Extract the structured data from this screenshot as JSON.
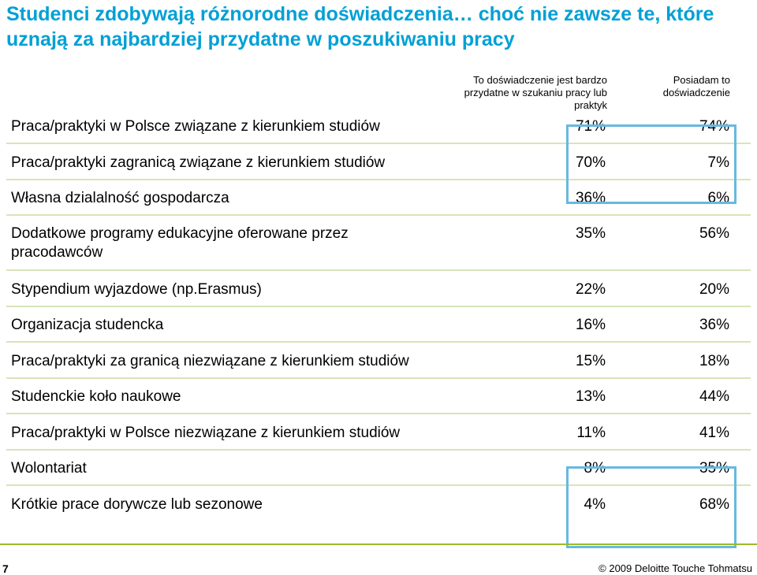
{
  "title": "Studenci zdobywają różnorodne doświadczenia… choć nie zawsze te, które uznają za najbardziej przydatne w poszukiwaniu pracy",
  "columns": {
    "useful": "To doświadczenie jest bardzo przydatne w szukaniu pracy lub praktyk",
    "have": "Posiadam to doświadczenie"
  },
  "rows": [
    {
      "label": "Praca/praktyki w Polsce związane z kierunkiem studiów",
      "useful": "71%",
      "have": "74%"
    },
    {
      "label": "Praca/praktyki zagranicą związane z kierunkiem studiów",
      "useful": "70%",
      "have": "7%"
    },
    {
      "label": "Własna dzialalność gospodarcza",
      "useful": "36%",
      "have": "6%"
    },
    {
      "label": "Dodatkowe programy edukacyjne oferowane przez pracodawców",
      "useful": "35%",
      "have": "56%"
    },
    {
      "label": "Stypendium wyjazdowe (np.Erasmus)",
      "useful": "22%",
      "have": "20%"
    },
    {
      "label": "Organizacja studencka",
      "useful": "16%",
      "have": "36%"
    },
    {
      "label": "Praca/praktyki za granicą niezwiązane z kierunkiem studiów",
      "useful": "15%",
      "have": "18%"
    },
    {
      "label": "Studenckie koło naukowe",
      "useful": "13%",
      "have": "44%"
    },
    {
      "label": "Praca/praktyki w Polsce niezwiązane z kierunkiem studiów",
      "useful": "11%",
      "have": "41%"
    },
    {
      "label": "Wolontariat",
      "useful": "8%",
      "have": "35%"
    },
    {
      "label": "Krótkie prace dorywcze lub sezonowe",
      "useful": "4%",
      "have": "68%"
    }
  ],
  "footer": {
    "page_number": "7",
    "copyright": "© 2009 Deloitte Touche Tohmatsu"
  },
  "colors": {
    "title": "#00A0D6",
    "callout": "#67B9E0",
    "row_rule": "#D8E4B8",
    "footer_rule": "#9CBB2C"
  }
}
